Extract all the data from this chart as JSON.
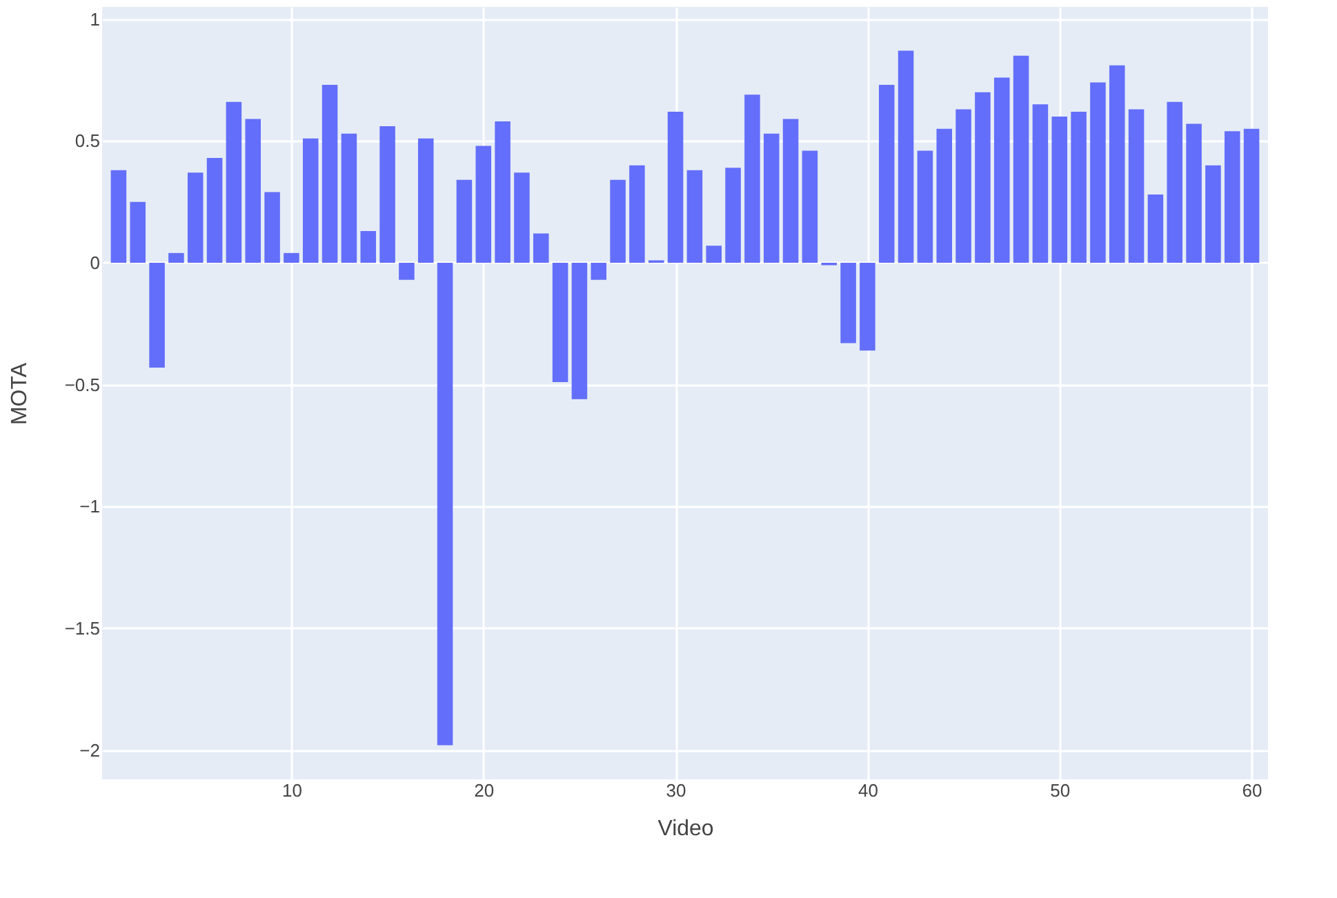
{
  "chart_data": {
    "type": "bar",
    "xlabel": "Video",
    "ylabel": "MOTA",
    "x": [
      1,
      2,
      3,
      4,
      5,
      6,
      7,
      8,
      9,
      10,
      11,
      12,
      13,
      14,
      15,
      16,
      17,
      18,
      19,
      20,
      21,
      22,
      23,
      24,
      25,
      26,
      27,
      28,
      29,
      30,
      31,
      32,
      33,
      34,
      35,
      36,
      37,
      38,
      39,
      40,
      41,
      42,
      43,
      44,
      45,
      46,
      47,
      48,
      49,
      50,
      51,
      52,
      53,
      54,
      55,
      56,
      57,
      58,
      59,
      60
    ],
    "values": [
      0.38,
      0.25,
      -0.43,
      0.04,
      0.37,
      0.43,
      0.66,
      0.59,
      0.29,
      0.04,
      0.51,
      0.73,
      0.53,
      0.13,
      0.56,
      -0.07,
      0.51,
      -1.98,
      0.34,
      0.48,
      0.58,
      0.37,
      0.12,
      -0.49,
      -0.56,
      -0.07,
      0.34,
      0.4,
      0.01,
      0.62,
      0.38,
      0.07,
      0.39,
      0.69,
      0.53,
      0.59,
      0.46,
      -0.01,
      -0.33,
      -0.36,
      0.73,
      0.87,
      0.46,
      0.55,
      0.63,
      0.7,
      0.76,
      0.85,
      0.65,
      0.6,
      0.62,
      0.74,
      0.81,
      0.63,
      0.28,
      0.66,
      0.57,
      0.4,
      0.54,
      0.55
    ],
    "color": "#636efa",
    "xlim": [
      0.5,
      60.5
    ],
    "xticks": [
      10,
      20,
      30,
      40,
      50,
      60
    ],
    "ylim": [
      -2.12,
      1.05
    ],
    "yticks": [
      -2,
      -1.5,
      -1,
      -0.5,
      0,
      0.5,
      1
    ],
    "grid": true
  }
}
